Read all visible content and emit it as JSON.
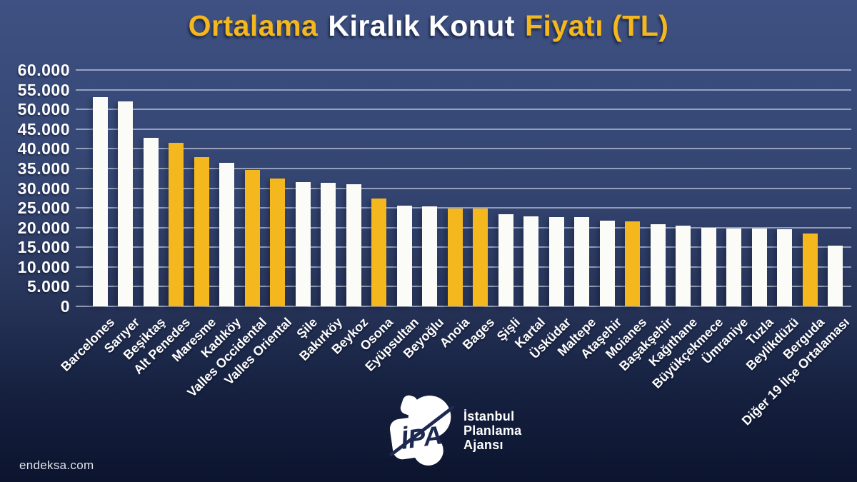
{
  "title": {
    "part1": "Ortalama",
    "part2": "Kiralık Konut",
    "part3": "Fiyatı (TL)"
  },
  "watermark": "endeksa.com",
  "logo": {
    "monogram": "İPA",
    "name_line1": "İstanbul",
    "name_line2": "Planlama",
    "name_line3": "Ajansı"
  },
  "colors": {
    "accent_yellow": "#F4B71E",
    "bar_white": "#FBFBF8",
    "title_white": "#FFFFFF",
    "navy_logo_text": "#1D2950",
    "gridline": "rgba(228,235,250,0.55)",
    "axis_text": "#FDFDFD"
  },
  "chart_data": {
    "type": "bar",
    "title": "Ortalama Kiralık Konut Fiyatı (TL)",
    "xlabel": "",
    "ylabel": "",
    "ylim": [
      0,
      60000
    ],
    "y_tick_step": 5000,
    "y_tick_labels": [
      "60.000",
      "55.000",
      "50.000",
      "45.000",
      "40.000",
      "35.000",
      "30.000",
      "25.000",
      "20.000",
      "15.000",
      "10.000",
      "5.000",
      "0"
    ],
    "grid": true,
    "legend_position": "none",
    "categories": [
      "Barcelones",
      "Sarıyer",
      "Beşiktaş",
      "Alt Penedes",
      "Maresme",
      "Kadıköy",
      "Valles Occidental",
      "Valles Oriental",
      "Şile",
      "Bakırköy",
      "Beykoz",
      "Osona",
      "Eyüpsultan",
      "Beyoğlu",
      "Anoia",
      "Bages",
      "Şişli",
      "Kartal",
      "Üsküdar",
      "Maltepe",
      "Ataşehir",
      "Moianes",
      "Başakşehir",
      "Kağıthane",
      "Büyükçekmece",
      "Ümraniye",
      "Tuzla",
      "Beylikdüzü",
      "Berguda",
      "Diğer 19 İlçe Ortalaması"
    ],
    "values": [
      53200,
      52000,
      42700,
      41500,
      37900,
      36500,
      34700,
      32400,
      31600,
      31400,
      31000,
      27300,
      25500,
      25400,
      24900,
      24800,
      23400,
      22800,
      22700,
      22600,
      21700,
      21600,
      20800,
      20500,
      19900,
      19800,
      19700,
      19600,
      18500,
      15400
    ],
    "highlighted": [
      false,
      false,
      false,
      true,
      true,
      false,
      true,
      true,
      false,
      false,
      false,
      true,
      false,
      false,
      true,
      true,
      false,
      false,
      false,
      false,
      false,
      true,
      false,
      false,
      false,
      false,
      false,
      false,
      true,
      false
    ]
  }
}
